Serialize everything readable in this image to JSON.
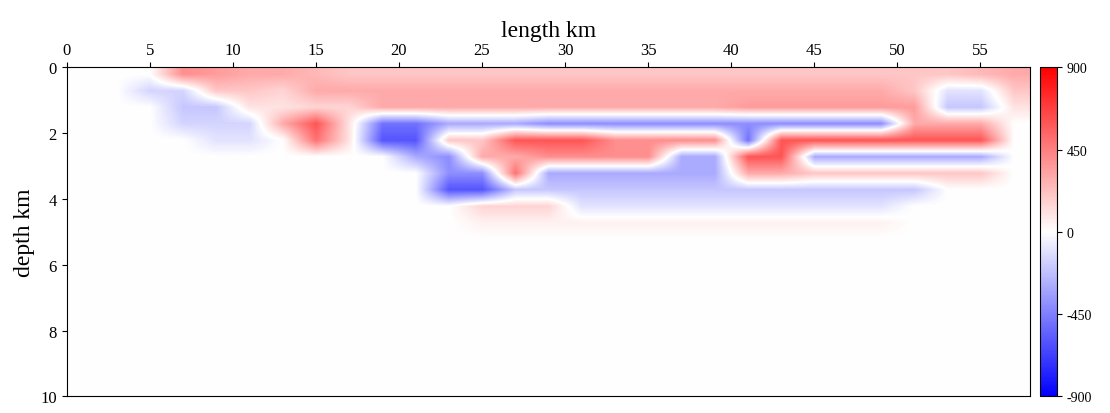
{
  "chart_data": {
    "type": "heatmap",
    "xlabel": "length km",
    "ylabel": "depth km",
    "xlim": [
      0,
      58
    ],
    "ylim": [
      10,
      0
    ],
    "xticks": [
      0,
      5,
      10,
      15,
      20,
      25,
      30,
      35,
      40,
      45,
      50,
      55
    ],
    "yticks": [
      0,
      2,
      4,
      6,
      8,
      10
    ],
    "colorbar_range": [
      -900,
      900
    ],
    "colorbar_ticks": [
      900,
      450,
      0,
      -450,
      -900
    ],
    "cells": [
      [
        0,
        0,
        0,
        400,
        350,
        300,
        300,
        250,
        200,
        200,
        200,
        200,
        200,
        200,
        200,
        200,
        200,
        200,
        200,
        200,
        200,
        200,
        200,
        200,
        200,
        200,
        200,
        250,
        300
      ],
      [
        0,
        0,
        -150,
        -150,
        200,
        200,
        150,
        300,
        300,
        300,
        300,
        300,
        300,
        300,
        300,
        300,
        300,
        300,
        300,
        300,
        300,
        300,
        300,
        300,
        300,
        200,
        -100,
        -100,
        200
      ],
      [
        0,
        0,
        0,
        -200,
        -200,
        100,
        100,
        150,
        150,
        300,
        300,
        300,
        300,
        300,
        300,
        300,
        300,
        300,
        300,
        300,
        350,
        350,
        350,
        350,
        350,
        350,
        -200,
        -200,
        100
      ],
      [
        0,
        0,
        0,
        -150,
        -150,
        -150,
        300,
        600,
        100,
        -500,
        -500,
        -300,
        -300,
        -300,
        -400,
        -400,
        -400,
        -400,
        -400,
        -400,
        -400,
        -400,
        -400,
        -400,
        -400,
        300,
        300,
        300,
        0
      ],
      [
        0,
        0,
        0,
        0,
        -100,
        -100,
        0,
        500,
        100,
        -600,
        -600,
        200,
        200,
        600,
        600,
        600,
        400,
        400,
        400,
        400,
        -500,
        600,
        600,
        600,
        600,
        600,
        600,
        600,
        0
      ],
      [
        0,
        0,
        0,
        0,
        0,
        0,
        0,
        0,
        0,
        0,
        -300,
        -400,
        300,
        300,
        400,
        400,
        400,
        400,
        -300,
        -300,
        600,
        600,
        -300,
        -300,
        -300,
        -300,
        -300,
        -300,
        0
      ],
      [
        0,
        0,
        0,
        0,
        0,
        0,
        0,
        0,
        0,
        0,
        0,
        -400,
        -400,
        500,
        -300,
        -300,
        -300,
        -300,
        -300,
        -300,
        300,
        300,
        200,
        200,
        200,
        200,
        200,
        200,
        0
      ],
      [
        0,
        0,
        0,
        0,
        0,
        0,
        0,
        0,
        0,
        0,
        0,
        -600,
        -600,
        -200,
        -200,
        -200,
        -200,
        -200,
        -200,
        -200,
        -200,
        -200,
        -200,
        -200,
        -200,
        -200,
        0,
        0,
        0
      ],
      [
        0,
        0,
        0,
        0,
        0,
        0,
        0,
        0,
        0,
        0,
        0,
        0,
        150,
        150,
        150,
        -100,
        -100,
        -100,
        -100,
        -100,
        -100,
        -100,
        -100,
        -100,
        -100,
        0,
        0,
        0,
        0
      ],
      [
        0,
        0,
        0,
        0,
        0,
        0,
        0,
        0,
        0,
        0,
        0,
        0,
        50,
        50,
        50,
        50,
        50,
        50,
        50,
        50,
        50,
        50,
        50,
        50,
        50,
        0,
        0,
        0,
        0
      ],
      [
        0,
        0,
        0,
        0,
        0,
        0,
        0,
        0,
        0,
        0,
        0,
        0,
        0,
        0,
        0,
        0,
        0,
        0,
        0,
        0,
        0,
        0,
        0,
        0,
        0,
        0,
        0,
        0,
        0
      ],
      [
        0,
        0,
        0,
        0,
        0,
        0,
        0,
        0,
        0,
        0,
        0,
        0,
        0,
        0,
        0,
        0,
        0,
        0,
        0,
        0,
        0,
        0,
        0,
        0,
        0,
        0,
        0,
        0,
        0
      ],
      [
        0,
        0,
        0,
        0,
        0,
        0,
        0,
        0,
        0,
        0,
        0,
        0,
        0,
        0,
        0,
        0,
        0,
        0,
        0,
        0,
        0,
        0,
        0,
        0,
        0,
        0,
        0,
        0,
        0
      ],
      [
        0,
        0,
        0,
        0,
        0,
        0,
        0,
        0,
        0,
        0,
        0,
        0,
        0,
        0,
        0,
        0,
        0,
        0,
        0,
        0,
        0,
        0,
        0,
        0,
        0,
        0,
        0,
        0,
        0
      ],
      [
        0,
        0,
        0,
        0,
        0,
        0,
        0,
        0,
        0,
        0,
        0,
        0,
        0,
        0,
        0,
        0,
        0,
        0,
        0,
        0,
        0,
        0,
        0,
        0,
        0,
        0,
        0,
        0,
        0
      ],
      [
        0,
        0,
        0,
        0,
        0,
        0,
        0,
        0,
        0,
        0,
        0,
        0,
        0,
        0,
        0,
        0,
        0,
        0,
        0,
        0,
        0,
        0,
        0,
        0,
        0,
        0,
        0,
        0,
        0
      ],
      [
        0,
        0,
        0,
        0,
        0,
        0,
        0,
        0,
        0,
        0,
        0,
        0,
        0,
        0,
        0,
        0,
        0,
        0,
        0,
        0,
        0,
        0,
        0,
        0,
        0,
        0,
        0,
        0,
        0
      ],
      [
        0,
        0,
        0,
        0,
        0,
        0,
        0,
        0,
        0,
        0,
        0,
        0,
        0,
        0,
        0,
        0,
        0,
        0,
        0,
        0,
        0,
        0,
        0,
        0,
        0,
        0,
        0,
        0,
        0
      ],
      [
        0,
        0,
        0,
        0,
        0,
        0,
        0,
        0,
        0,
        0,
        0,
        0,
        0,
        0,
        0,
        0,
        0,
        0,
        0,
        0,
        0,
        0,
        0,
        0,
        0,
        0,
        0,
        0,
        0
      ],
      [
        0,
        0,
        0,
        0,
        0,
        0,
        0,
        0,
        0,
        0,
        0,
        0,
        0,
        0,
        0,
        0,
        0,
        0,
        0,
        0,
        0,
        0,
        0,
        0,
        0,
        0,
        0,
        0,
        0
      ]
    ]
  }
}
